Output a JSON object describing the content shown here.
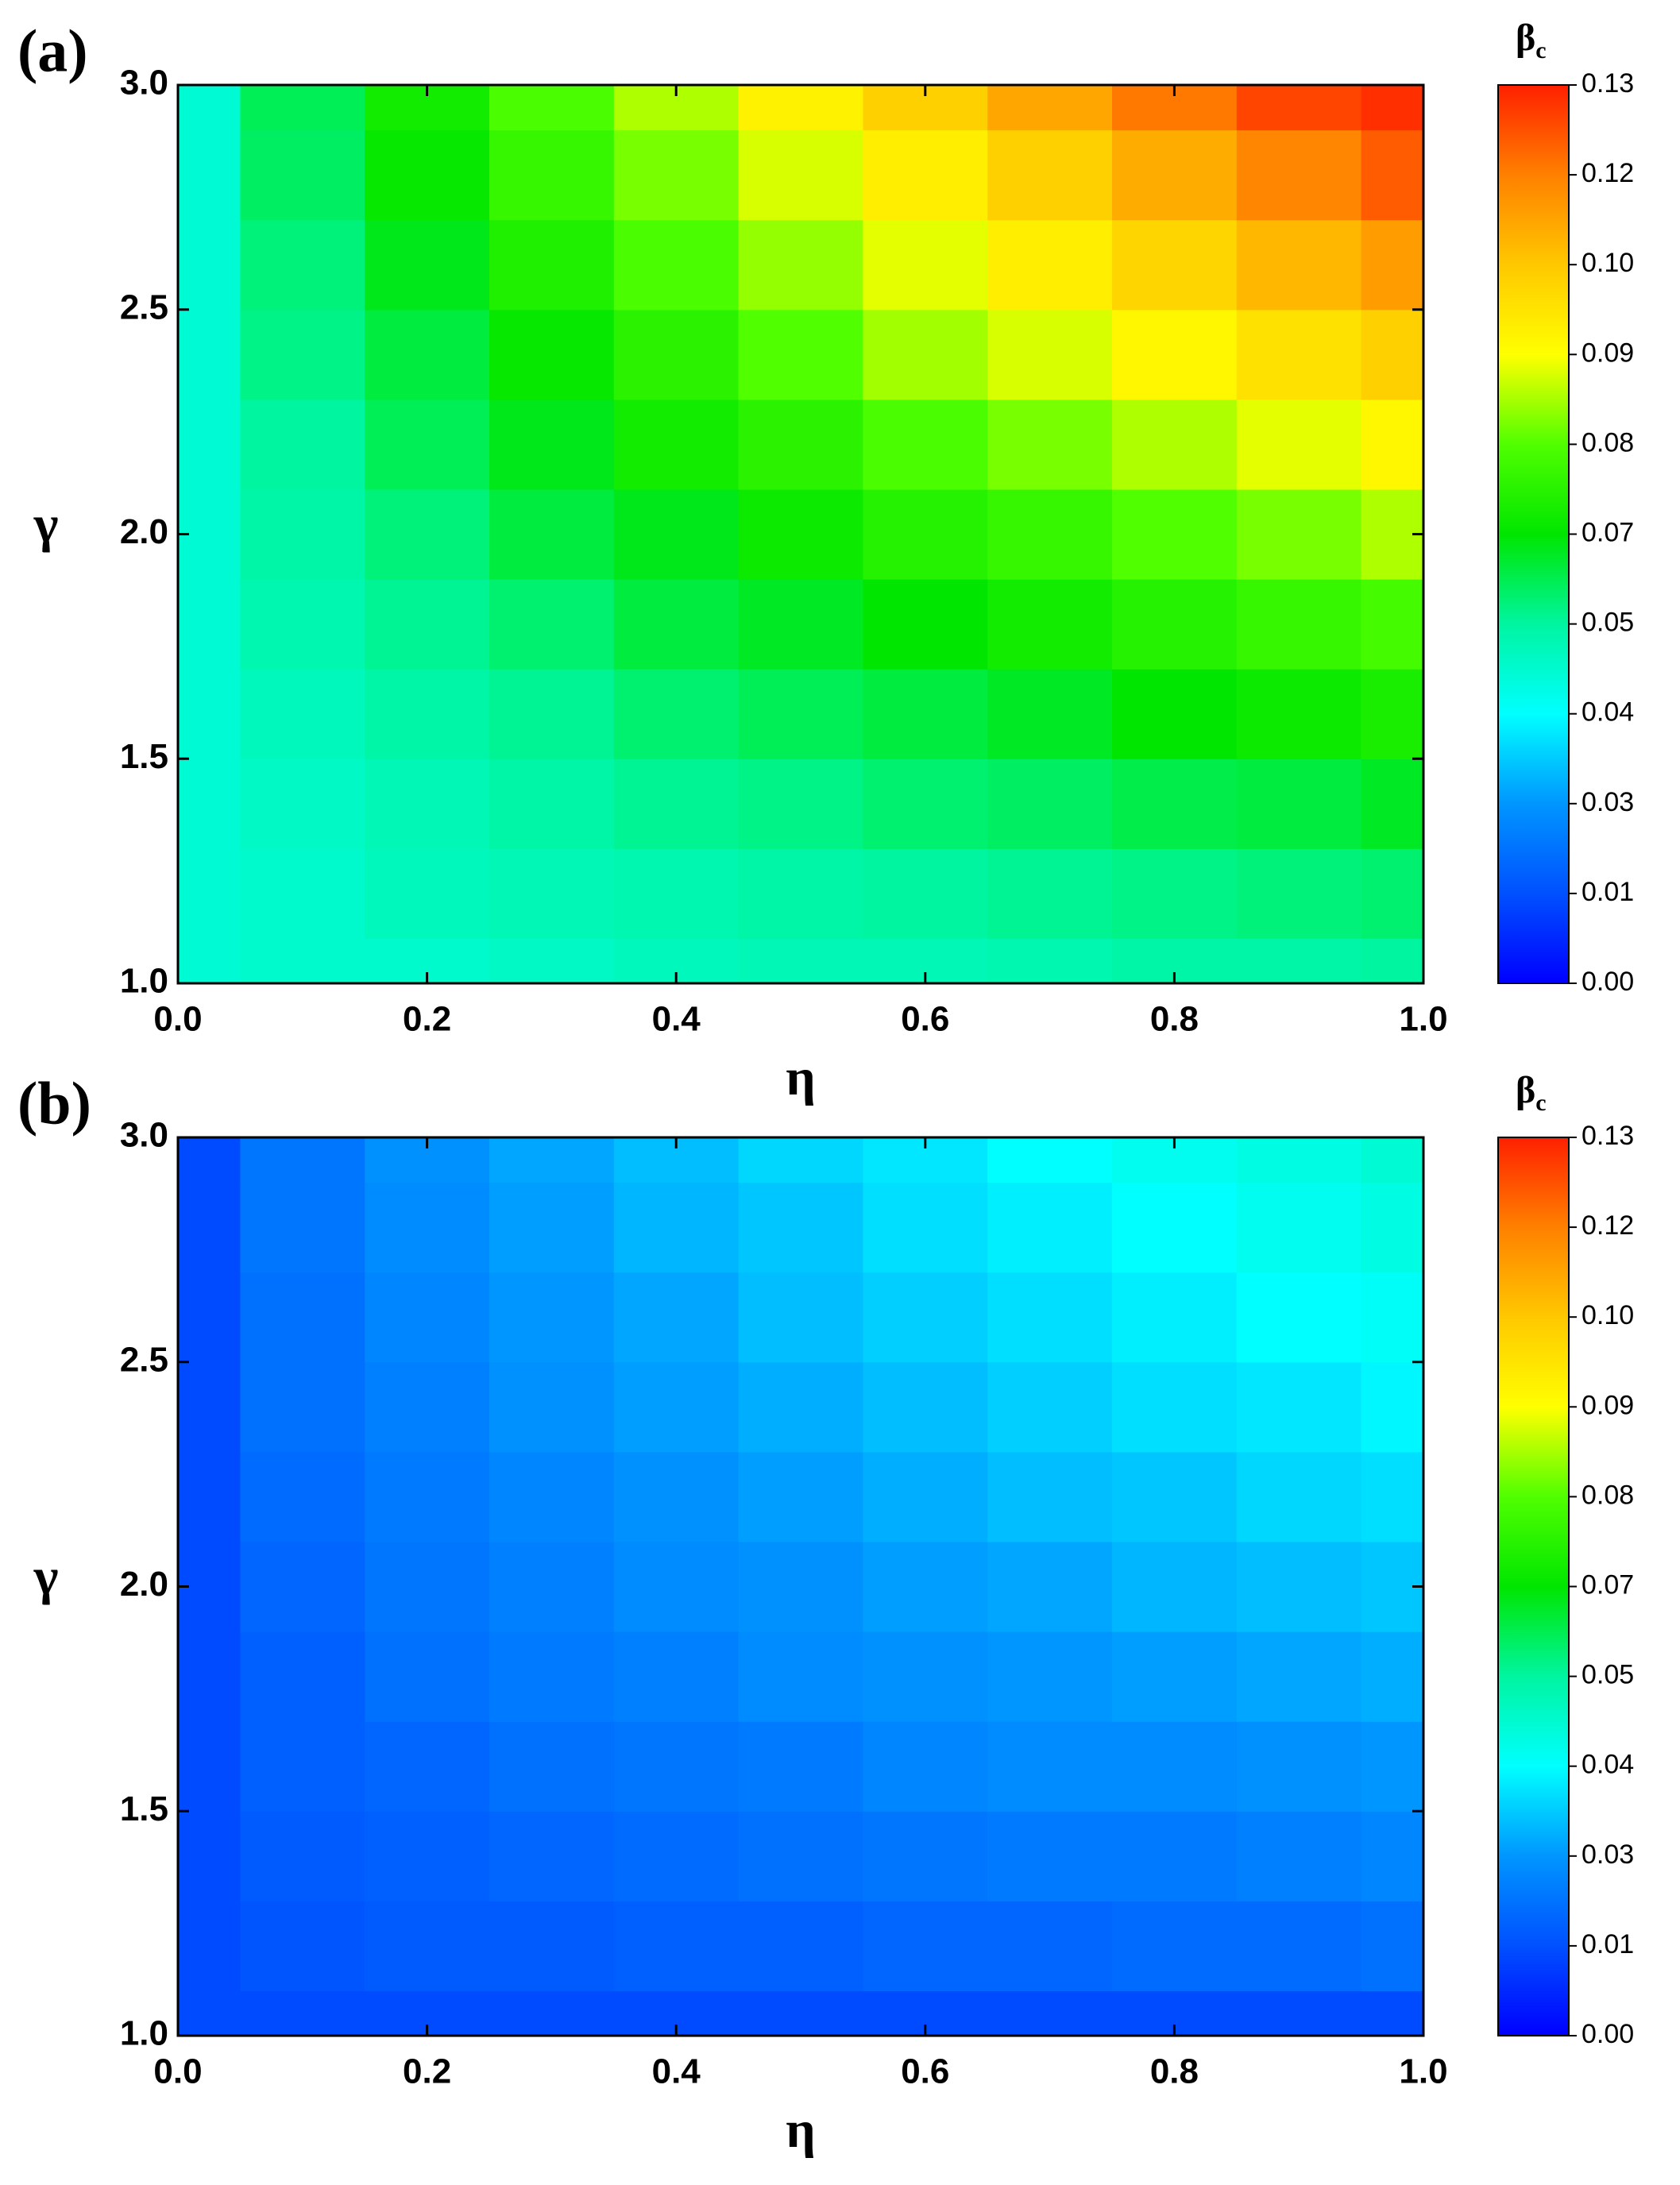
{
  "chart_data": [
    {
      "type": "contour",
      "label": "(a)",
      "xlabel": "η",
      "ylabel": "γ",
      "colorbar_label": "βc",
      "x": [
        0,
        0.1,
        0.2,
        0.3,
        0.4,
        0.5,
        0.6,
        0.7,
        0.8,
        0.9,
        1
      ],
      "y": [
        1,
        1.2,
        1.4,
        1.6,
        1.8,
        2,
        2.2,
        2.4,
        2.6,
        2.8,
        3
      ],
      "z": [
        [
          0.045,
          0.046,
          0.046,
          0.047,
          0.048,
          0.049,
          0.049,
          0.05,
          0.051,
          0.051,
          0.052
        ],
        [
          0.045,
          0.046,
          0.048,
          0.049,
          0.05,
          0.051,
          0.052,
          0.053,
          0.054,
          0.055,
          0.056
        ],
        [
          0.045,
          0.047,
          0.049,
          0.051,
          0.053,
          0.054,
          0.056,
          0.057,
          0.059,
          0.06,
          0.062
        ],
        [
          0.045,
          0.048,
          0.051,
          0.053,
          0.056,
          0.058,
          0.06,
          0.062,
          0.065,
          0.067,
          0.069
        ],
        [
          0.045,
          0.05,
          0.053,
          0.056,
          0.06,
          0.062,
          0.065,
          0.068,
          0.071,
          0.074,
          0.076
        ],
        [
          0.045,
          0.051,
          0.055,
          0.06,
          0.063,
          0.067,
          0.071,
          0.074,
          0.078,
          0.081,
          0.085
        ],
        [
          0.045,
          0.052,
          0.058,
          0.063,
          0.068,
          0.072,
          0.077,
          0.081,
          0.085,
          0.089,
          0.093
        ],
        [
          0.045,
          0.054,
          0.06,
          0.066,
          0.072,
          0.078,
          0.084,
          0.088,
          0.093,
          0.098,
          0.102
        ],
        [
          0.045,
          0.055,
          0.063,
          0.07,
          0.077,
          0.083,
          0.089,
          0.095,
          0.101,
          0.107,
          0.112
        ],
        [
          0.045,
          0.057,
          0.066,
          0.074,
          0.081,
          0.088,
          0.095,
          0.102,
          0.109,
          0.116,
          0.122
        ],
        [
          0.045,
          0.058,
          0.068,
          0.077,
          0.085,
          0.094,
          0.102,
          0.11,
          0.118,
          0.125,
          0.128
        ]
      ],
      "xlim": [
        0,
        1
      ],
      "ylim": [
        1,
        3
      ],
      "xticks": [
        {
          "value": 0,
          "label": "0.0"
        },
        0.2,
        0.4,
        0.6,
        0.8,
        {
          "value": 1,
          "label": "1.0"
        }
      ],
      "yticks": [
        {
          "value": 1,
          "label": "1.0"
        },
        1.5,
        {
          "value": 2,
          "label": "2.0"
        },
        2.5,
        {
          "value": 3,
          "label": "3.0"
        }
      ],
      "zlim": [
        0,
        0.13
      ],
      "zticks": [
        {
          "value": 0,
          "label": "0.00"
        },
        {
          "value": 0.013,
          "label": "0.01"
        },
        {
          "value": 0.026,
          "label": "0.03"
        },
        {
          "value": 0.039,
          "label": "0.04"
        },
        {
          "value": 0.052,
          "label": "0.05"
        },
        {
          "value": 0.065,
          "label": "0.07"
        },
        {
          "value": 0.078,
          "label": "0.08"
        },
        {
          "value": 0.091,
          "label": "0.09"
        },
        {
          "value": 0.104,
          "label": "0.10"
        },
        {
          "value": 0.117,
          "label": "0.12"
        },
        0.13
      ],
      "colormap": [
        "#0000ff",
        "#0050ff",
        "#0096ff",
        "#00ffff",
        "#00f5a0",
        "#00e600",
        "#50ff00",
        "#ffff00",
        "#ffc800",
        "#ff8000",
        "#ff2000"
      ]
    },
    {
      "type": "contour",
      "label": "(b)",
      "xlabel": "η",
      "ylabel": "γ",
      "colorbar_label": "βc",
      "x": [
        0,
        0.1,
        0.2,
        0.3,
        0.4,
        0.5,
        0.6,
        0.7,
        0.8,
        0.9,
        1
      ],
      "y": [
        1,
        1.2,
        1.4,
        1.6,
        1.8,
        2,
        2.2,
        2.4,
        2.6,
        2.8,
        3
      ],
      "z": [
        [
          0.012,
          0.012,
          0.012,
          0.012,
          0.012,
          0.012,
          0.012,
          0.012,
          0.012,
          0.012,
          0.012
        ],
        [
          0.012,
          0.014,
          0.015,
          0.015,
          0.016,
          0.016,
          0.017,
          0.017,
          0.018,
          0.018,
          0.019
        ],
        [
          0.012,
          0.015,
          0.016,
          0.017,
          0.018,
          0.019,
          0.02,
          0.021,
          0.021,
          0.022,
          0.023
        ],
        [
          0.012,
          0.016,
          0.017,
          0.019,
          0.02,
          0.021,
          0.023,
          0.024,
          0.024,
          0.025,
          0.026
        ],
        [
          0.012,
          0.016,
          0.019,
          0.021,
          0.022,
          0.024,
          0.025,
          0.026,
          0.027,
          0.028,
          0.029
        ],
        [
          0.012,
          0.017,
          0.02,
          0.022,
          0.024,
          0.025,
          0.027,
          0.028,
          0.03,
          0.031,
          0.032
        ],
        [
          0.012,
          0.018,
          0.021,
          0.023,
          0.025,
          0.027,
          0.029,
          0.031,
          0.032,
          0.034,
          0.035
        ],
        [
          0.012,
          0.019,
          0.022,
          0.025,
          0.027,
          0.029,
          0.031,
          0.033,
          0.035,
          0.036,
          0.038
        ],
        [
          0.012,
          0.019,
          0.023,
          0.026,
          0.028,
          0.031,
          0.033,
          0.035,
          0.037,
          0.039,
          0.04
        ],
        [
          0.012,
          0.02,
          0.024,
          0.027,
          0.03,
          0.032,
          0.035,
          0.037,
          0.039,
          0.041,
          0.043
        ],
        [
          0.012,
          0.02,
          0.025,
          0.028,
          0.031,
          0.034,
          0.036,
          0.039,
          0.041,
          0.043,
          0.045
        ]
      ],
      "xlim": [
        0,
        1
      ],
      "ylim": [
        1,
        3
      ],
      "xticks": [
        {
          "value": 0,
          "label": "0.0"
        },
        0.2,
        0.4,
        0.6,
        0.8,
        {
          "value": 1,
          "label": "1.0"
        }
      ],
      "yticks": [
        {
          "value": 1,
          "label": "1.0"
        },
        1.5,
        {
          "value": 2,
          "label": "2.0"
        },
        2.5,
        {
          "value": 3,
          "label": "3.0"
        }
      ],
      "zlim": [
        0,
        0.13
      ],
      "zticks": [
        {
          "value": 0,
          "label": "0.00"
        },
        {
          "value": 0.013,
          "label": "0.01"
        },
        {
          "value": 0.026,
          "label": "0.03"
        },
        {
          "value": 0.039,
          "label": "0.04"
        },
        {
          "value": 0.052,
          "label": "0.05"
        },
        {
          "value": 0.065,
          "label": "0.07"
        },
        {
          "value": 0.078,
          "label": "0.08"
        },
        {
          "value": 0.091,
          "label": "0.09"
        },
        {
          "value": 0.104,
          "label": "0.10"
        },
        {
          "value": 0.117,
          "label": "0.12"
        },
        0.13
      ],
      "colormap": [
        "#0000ff",
        "#0050ff",
        "#0096ff",
        "#00ffff",
        "#00f5a0",
        "#00e600",
        "#50ff00",
        "#ffff00",
        "#ffc800",
        "#ff8000",
        "#ff2000"
      ]
    }
  ]
}
